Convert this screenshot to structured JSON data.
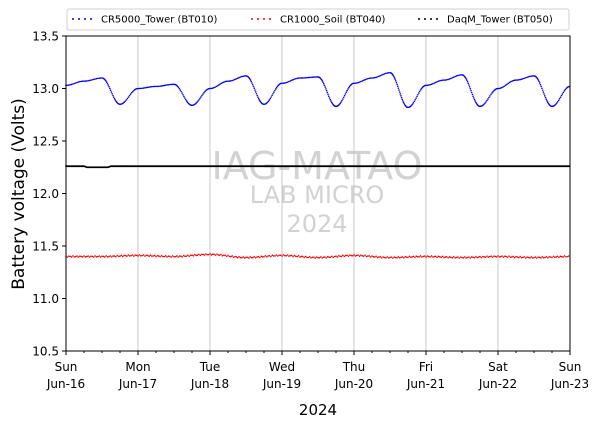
{
  "chart_data": {
    "type": "line",
    "xlabel": "2024",
    "ylabel": "Battery voltage (Volts)",
    "ylim": [
      10.5,
      13.5
    ],
    "yticks": [
      10.5,
      11.0,
      11.5,
      12.0,
      12.5,
      13.0,
      13.5
    ],
    "ytick_labels": [
      "10.5",
      "11.0",
      "11.5",
      "12.0",
      "12.5",
      "13.0",
      "13.5"
    ],
    "xlim": [
      "2024-06-16",
      "2024-06-23"
    ],
    "xticks": [
      {
        "day": "Sun",
        "date": "Jun-16"
      },
      {
        "day": "Mon",
        "date": "Jun-17"
      },
      {
        "day": "Tue",
        "date": "Jun-18"
      },
      {
        "day": "Wed",
        "date": "Jun-19"
      },
      {
        "day": "Thu",
        "date": "Jun-20"
      },
      {
        "day": "Fri",
        "date": "Jun-21"
      },
      {
        "day": "Sat",
        "date": "Jun-22"
      },
      {
        "day": "Sun",
        "date": "Jun-23"
      }
    ],
    "grid": "x-major",
    "legend_position": "top",
    "series": [
      {
        "name": "CR5000_Tower (BT010)",
        "color": "#0000ff",
        "marker": "dots",
        "x": [
          "2024-06-16 00:00",
          "2024-06-16 06:00",
          "2024-06-16 12:00",
          "2024-06-16 18:00",
          "2024-06-17 00:00",
          "2024-06-17 06:00",
          "2024-06-17 12:00",
          "2024-06-17 18:00",
          "2024-06-18 00:00",
          "2024-06-18 06:00",
          "2024-06-18 12:00",
          "2024-06-18 18:00",
          "2024-06-19 00:00",
          "2024-06-19 06:00",
          "2024-06-19 12:00",
          "2024-06-19 18:00",
          "2024-06-20 00:00",
          "2024-06-20 06:00",
          "2024-06-20 12:00",
          "2024-06-20 18:00",
          "2024-06-21 00:00",
          "2024-06-21 06:00",
          "2024-06-21 12:00",
          "2024-06-21 18:00",
          "2024-06-22 00:00",
          "2024-06-22 06:00",
          "2024-06-22 12:00",
          "2024-06-22 18:00",
          "2024-06-23 00:00"
        ],
        "y": [
          13.03,
          13.07,
          13.1,
          12.85,
          13.0,
          13.02,
          13.04,
          12.84,
          13.0,
          13.07,
          13.12,
          12.85,
          13.05,
          13.1,
          13.11,
          12.83,
          13.05,
          13.1,
          13.15,
          12.82,
          13.03,
          13.08,
          13.13,
          12.83,
          13.0,
          13.08,
          13.12,
          12.83,
          13.02
        ]
      },
      {
        "name": "CR1000_Soil (BT040)",
        "color": "#ff0000",
        "marker": "dots",
        "x": [
          "2024-06-16 00:00",
          "2024-06-16 12:00",
          "2024-06-17 00:00",
          "2024-06-17 12:00",
          "2024-06-18 00:00",
          "2024-06-18 12:00",
          "2024-06-19 00:00",
          "2024-06-19 12:00",
          "2024-06-20 00:00",
          "2024-06-20 12:00",
          "2024-06-21 00:00",
          "2024-06-21 12:00",
          "2024-06-22 00:00",
          "2024-06-22 12:00",
          "2024-06-23 00:00"
        ],
        "y": [
          11.4,
          11.4,
          11.41,
          11.4,
          11.42,
          11.39,
          11.41,
          11.39,
          11.41,
          11.39,
          11.4,
          11.39,
          11.4,
          11.39,
          11.4
        ]
      },
      {
        "name": "DaqM_Tower (BT050)",
        "color": "#000000",
        "marker": "dots",
        "x": [
          "2024-06-16 00:00",
          "2024-06-16 06:00",
          "2024-06-16 07:00",
          "2024-06-16 14:00",
          "2024-06-16 15:00",
          "2024-06-23 00:00"
        ],
        "y": [
          12.26,
          12.26,
          12.25,
          12.25,
          12.26,
          12.26
        ]
      }
    ]
  },
  "watermark": {
    "line1": "IAG-MATAO",
    "line2": "LAB MICRO",
    "line3": "2024"
  }
}
